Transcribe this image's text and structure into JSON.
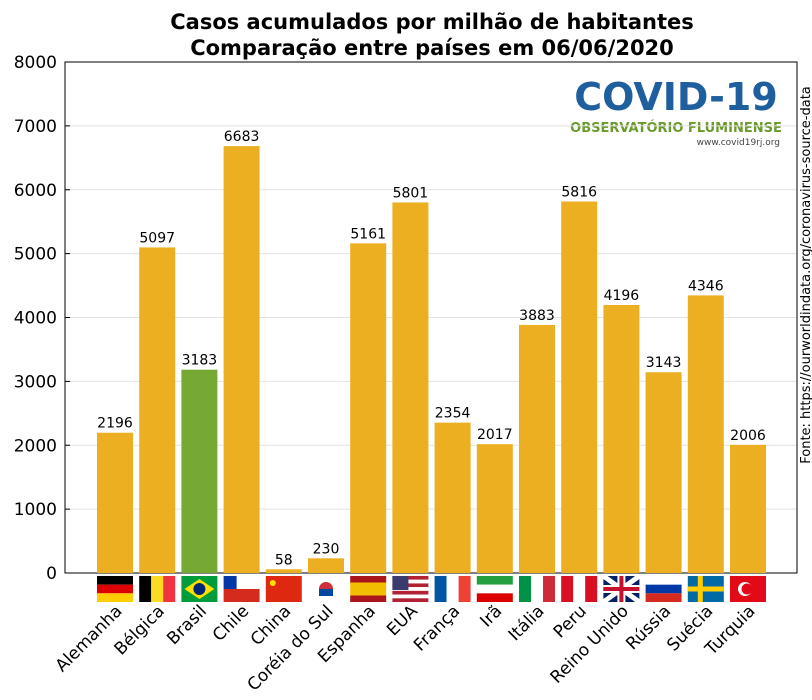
{
  "chart_data": {
    "type": "bar",
    "title": "Casos acumulados por milhão de habitantes",
    "subtitle": "Comparação entre países em 06/06/2020",
    "categories": [
      "Alemanha",
      "Bélgica",
      "Brasil",
      "Chile",
      "China",
      "Coréia do Sul",
      "Espanha",
      "EUA",
      "França",
      "Irã",
      "Itália",
      "Peru",
      "Reino Unido",
      "Rússia",
      "Suécia",
      "Turquia"
    ],
    "values": [
      2196,
      5097,
      3183,
      6683,
      58,
      230,
      5161,
      5801,
      2354,
      2017,
      3883,
      5816,
      4196,
      3143,
      4346,
      2006
    ],
    "colors": [
      "#ecaf22",
      "#ecaf22",
      "#76a933",
      "#ecaf22",
      "#ecaf22",
      "#ecaf22",
      "#ecaf22",
      "#ecaf22",
      "#ecaf22",
      "#ecaf22",
      "#ecaf22",
      "#ecaf22",
      "#ecaf22",
      "#ecaf22",
      "#ecaf22",
      "#ecaf22"
    ],
    "ylim": [
      0,
      8000
    ],
    "yticks": [
      0,
      1000,
      2000,
      3000,
      4000,
      5000,
      6000,
      7000,
      8000
    ],
    "grid": true,
    "source": "Fonte: https://ourworldindata.org/coronavirus-source-data",
    "logo": {
      "title": "COVID-19",
      "subtitle": "OBSERVATÓRIO FLUMINENSE",
      "url": "www.covid19rj.org"
    }
  }
}
